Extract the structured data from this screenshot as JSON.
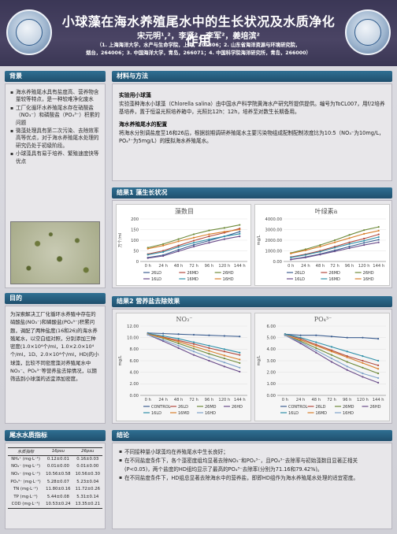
{
  "header": {
    "title": "小球藻在海水养殖尾水中的生长状况及水质净化作用",
    "authors": "宋元明¹,²，李贤²，李军²，姜培滨²",
    "affiliation_line1": "（1. 上海海洋大学，水产与生命学院，上海，201306；2. 山东省海洋资源与环境研究院，",
    "affiliation_line2": "烟台，264006；3. 中国海洋大学，青岛，266071；4. 中国科学院海洋研究所，青岛，266000）"
  },
  "background": {
    "heading": "背景",
    "bullets": [
      "海水养殖尾水具有盐度高、营养物含量较等特点，是一种较难净化废水",
      "工厂化循环水养殖尾水存在硝酸盐（NO₃⁻）和磷酸盐（PO₄³⁻）积累的问题",
      "微藻处理具有第二次污染、去除效率高等优点，对于海水养殖尾水处理的研究仍处于初级阶段。",
      "小球藻具有易于培养、繁殖速度快等优点"
    ]
  },
  "objective": {
    "heading": "目的",
    "text": "为深索解决工厂化循环水养殖中存在的硝酸盐(NO₃⁻)和磷酸盐(PO₄³⁻)积累问题，调配了两种盐度(16和26)的海水养殖尾水，以空白组对照，分别添加三种密度(1.0×10⁴个/ml，1.0×2.0×10⁴个/ml，1D、2.0×10⁴个/ml，HD)的小球藻，比较不同密度藻对养殖尾水中NO₃⁻、PO₄³⁻等营养盐去除情况，以期筛选到小球藻的适宜添加密度。"
  },
  "water_quality": {
    "heading": "尾水水质指标",
    "columns": [
      "水质指标",
      "16psu",
      "26psu"
    ],
    "rows": [
      [
        "NH₄⁺ (mg·L⁻¹)",
        "0.12±0.01",
        "0.16±0.03"
      ],
      [
        "NO₂⁻ (mg·L⁻¹)",
        "0.01±0.00",
        "0.01±0.00"
      ],
      [
        "NO₃⁻ (mg·L⁻¹)",
        "10.56±0.58",
        "10.56±0.30"
      ],
      [
        "PO₄³⁻ (mg·L⁻¹)",
        "5.28±0.07",
        "5.23±0.04"
      ],
      [
        "TN (mg·L⁻¹)",
        "11.80±0.16",
        "11.72±0.26"
      ],
      [
        "TP (mg·L⁻¹)",
        "5.44±0.08",
        "5.31±0.14"
      ],
      [
        "COD (mg·L⁻¹)",
        "10.53±0.24",
        "13.35±0.21"
      ]
    ]
  },
  "methods": {
    "heading": "材料与方法",
    "sub1": "实验用小球藻",
    "text1": "实验藻种海水小球藻（Chlorella salina）由中国水产科学院黄海水产研究所提供提供。编号为ToCL007，用f/2培养基培养，置于恒温光照培养箱中，光照比12h：12h，培养至对数生长期备用。",
    "sub2": "海水养殖尾水的配置",
    "text2": "将海水分别调盐度至16和26后，根据前期调研养殖尾水主要污染物组成配制配制浓度比为10:5（NO₃⁻为10mg/L，PO₄³⁻为5mg/L）的模拟海水养殖尾水。"
  },
  "results1": {
    "heading": "结果1 藻生长状况"
  },
  "results2": {
    "heading": "结果2 营养盐去除效果"
  },
  "discussion": {
    "heading": "结论",
    "bullets": [
      "不同接种量小球藻均在养殖尾水中生长良好；",
      "在不同盐度条件下，各个藻密度组均显著去除NO₃⁻和PO₄³⁻，且PO₄³⁻去除率与初始藻数目显著正相关(P<0.05)，两个盐度的HD组均显示了最高的PO₄³⁻去除率(分别为71.16和79.42%)。",
      "在不同盐度条件下，HD组总显著去除海水中的营养盐，即即HD组作为海水养殖尾水处理的适宜密度。"
    ]
  },
  "chart_data": [
    {
      "type": "line",
      "title": "藻数目",
      "ylabel": "万个/ml",
      "categories": [
        "0 h",
        "24 h",
        "48 h",
        "72 h",
        "96 h",
        "120 h",
        "144 h"
      ],
      "ylim": [
        0,
        200
      ],
      "yticks": [
        "0",
        "50",
        "100",
        "150",
        "200"
      ],
      "series": [
        {
          "name": "26LD",
          "color": "#3d5f91",
          "values": [
            18,
            30,
            55,
            78,
            98,
            118,
            140
          ]
        },
        {
          "name": "26MD",
          "color": "#b24a3e",
          "values": [
            35,
            50,
            75,
            98,
            118,
            135,
            155
          ]
        },
        {
          "name": "26HD",
          "color": "#6e8a3a",
          "values": [
            65,
            82,
            105,
            128,
            146,
            158,
            172
          ]
        },
        {
          "name": "16LD",
          "color": "#6a4c8a",
          "values": [
            16,
            26,
            48,
            70,
            88,
            105,
            118
          ]
        },
        {
          "name": "16MD",
          "color": "#2e8fa8",
          "values": [
            32,
            45,
            68,
            88,
            104,
            118,
            130
          ]
        },
        {
          "name": "16HD",
          "color": "#d97f2b",
          "values": [
            60,
            75,
            95,
            112,
            128,
            140,
            150
          ]
        }
      ]
    },
    {
      "type": "line",
      "title": "叶绿素a",
      "ylabel": "mg/L",
      "categories": [
        "0 h",
        "24 h",
        "48 h",
        "72 h",
        "96 h",
        "120 h",
        "144 h"
      ],
      "ylim": [
        0,
        4000
      ],
      "yticks": [
        "0.00",
        "1000.00",
        "2000.00",
        "3000.00",
        "4000.00"
      ],
      "series": [
        {
          "name": "26LD",
          "color": "#3d5f91",
          "values": [
            200,
            420,
            700,
            1050,
            1400,
            1750,
            2050
          ]
        },
        {
          "name": "26MD",
          "color": "#b24a3e",
          "values": [
            420,
            680,
            1000,
            1400,
            1800,
            2150,
            2550
          ]
        },
        {
          "name": "26HD",
          "color": "#6e8a3a",
          "values": [
            800,
            1150,
            1550,
            2000,
            2500,
            2950,
            3250
          ]
        },
        {
          "name": "16LD",
          "color": "#6a4c8a",
          "values": [
            180,
            380,
            650,
            950,
            1250,
            1550,
            1800
          ]
        },
        {
          "name": "16MD",
          "color": "#2e8fa8",
          "values": [
            380,
            620,
            920,
            1300,
            1650,
            1950,
            2300
          ]
        },
        {
          "name": "16HD",
          "color": "#d97f2b",
          "values": [
            750,
            1050,
            1400,
            1800,
            2200,
            2600,
            2900
          ]
        }
      ]
    },
    {
      "type": "line",
      "title": "NO₃⁻",
      "ylabel": "mg/L",
      "categories": [
        "0 h",
        "24 h",
        "48 h",
        "72 h",
        "96 h",
        "120 h",
        "144 h"
      ],
      "ylim": [
        0,
        12
      ],
      "yticks": [
        "0.00",
        "2.00",
        "4.00",
        "6.00",
        "8.00",
        "10.00",
        "12.00"
      ],
      "series": [
        {
          "name": "CONTROL",
          "color": "#3d5f91",
          "values": [
            10.8,
            10.7,
            10.6,
            10.5,
            10.4,
            10.3,
            10.2
          ]
        },
        {
          "name": "26LD",
          "color": "#b24a3e",
          "values": [
            10.6,
            10.1,
            9.5,
            8.9,
            8.2,
            7.6,
            7.0
          ]
        },
        {
          "name": "26MD",
          "color": "#6e8a3a",
          "values": [
            10.6,
            9.9,
            9.0,
            8.1,
            7.2,
            6.4,
            5.6
          ]
        },
        {
          "name": "26HD",
          "color": "#6a4c8a",
          "values": [
            10.5,
            9.4,
            8.2,
            7.0,
            6.0,
            5.0,
            4.1
          ]
        },
        {
          "name": "16LD",
          "color": "#2e8fa8",
          "values": [
            10.7,
            10.3,
            9.8,
            9.2,
            8.6,
            8.0,
            7.4
          ]
        },
        {
          "name": "16MD",
          "color": "#d97f2b",
          "values": [
            10.6,
            10.0,
            9.3,
            8.5,
            7.7,
            6.9,
            6.2
          ]
        },
        {
          "name": "16HD",
          "color": "#7fa3c9",
          "values": [
            10.5,
            9.6,
            8.6,
            7.6,
            6.6,
            5.7,
            4.8
          ]
        }
      ]
    },
    {
      "type": "line",
      "title": "PO₄³⁻",
      "ylabel": "mg/L",
      "categories": [
        "0 h",
        "24 h",
        "48 h",
        "72 h",
        "96 h",
        "120 h",
        "144 h"
      ],
      "ylim": [
        0,
        6
      ],
      "yticks": [
        "0.00",
        "1.00",
        "2.00",
        "3.00",
        "4.00",
        "5.00",
        "6.00"
      ],
      "series": [
        {
          "name": "CONTROL",
          "color": "#3d5f91",
          "values": [
            5.3,
            5.2,
            5.2,
            5.1,
            5.0,
            5.0,
            4.9
          ]
        },
        {
          "name": "26LD",
          "color": "#b24a3e",
          "values": [
            5.3,
            4.9,
            4.4,
            3.9,
            3.4,
            3.0,
            2.6
          ]
        },
        {
          "name": "26MD",
          "color": "#6e8a3a",
          "values": [
            5.2,
            4.7,
            4.1,
            3.5,
            2.9,
            2.4,
            1.9
          ]
        },
        {
          "name": "26HD",
          "color": "#6a4c8a",
          "values": [
            5.2,
            4.5,
            3.7,
            2.9,
            2.2,
            1.6,
            1.1
          ]
        },
        {
          "name": "16LD",
          "color": "#2e8fa8",
          "values": [
            5.3,
            5.0,
            4.6,
            4.2,
            3.8,
            3.4,
            3.0
          ]
        },
        {
          "name": "16MD",
          "color": "#d97f2b",
          "values": [
            5.2,
            4.8,
            4.3,
            3.8,
            3.3,
            2.8,
            2.3
          ]
        },
        {
          "name": "16HD",
          "color": "#7fa3c9",
          "values": [
            5.2,
            4.6,
            3.9,
            3.2,
            2.5,
            1.9,
            1.5
          ]
        }
      ]
    }
  ]
}
